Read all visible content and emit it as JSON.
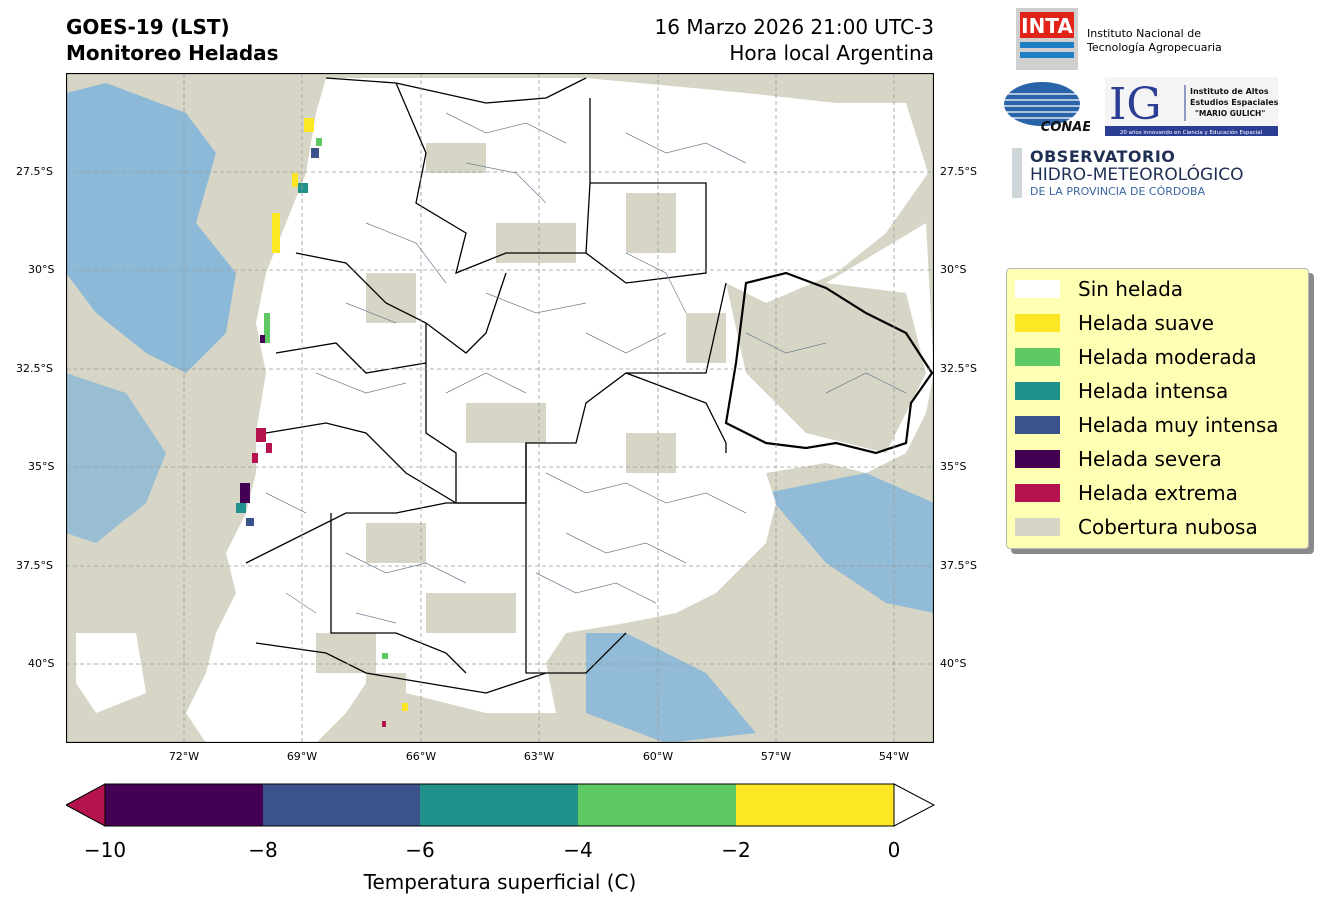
{
  "header": {
    "title_line1": "GOES-19 (LST)",
    "title_line2": "Monitoreo Heladas",
    "date_line1": "16 Marzo 2026 21:00 UTC-3",
    "date_line2": "Hora local Argentina"
  },
  "map": {
    "lat_labels": [
      "27.5°S",
      "30°S",
      "32.5°S",
      "35°S",
      "37.5°S",
      "40°S"
    ],
    "lon_labels": [
      "72°W",
      "69°W",
      "66°W",
      "63°W",
      "60°W",
      "57°W",
      "54°W"
    ],
    "colors": {
      "cloud": "#d7d6c6",
      "water": "#7fb4da",
      "land": "#ffffff",
      "border": "#000000",
      "dept": "#708090"
    }
  },
  "legend": {
    "items": [
      {
        "label": "Sin helada",
        "color": "#ffffff"
      },
      {
        "label": "Helada suave",
        "color": "#fde725"
      },
      {
        "label": "Helada moderada",
        "color": "#5ec962"
      },
      {
        "label": "Helada intensa",
        "color": "#21918c"
      },
      {
        "label": "Helada muy intensa",
        "color": "#3b528b"
      },
      {
        "label": "Helada severa",
        "color": "#440154"
      },
      {
        "label": "Helada extrema",
        "color": "#b5134f"
      },
      {
        "label": "Cobertura nubosa",
        "color": "#d7d6c6"
      }
    ]
  },
  "colorbar": {
    "ticks": [
      "−10",
      "−8",
      "−6",
      "−4",
      "−2",
      "0"
    ],
    "label": "Temperatura superficial (C)"
  },
  "logos": {
    "inta_mark": "INTA",
    "inta_line1": "Instituto Nacional de",
    "inta_line2": "Tecnología Agropecuaria",
    "conae_mark": "CONAE",
    "ig_mark": "IG",
    "ig_line1": "Instituto de Altos",
    "ig_line2": "Estudios Espaciales",
    "ig_line3": "\"MARIO GULICH\"",
    "ig_tagline": "20 años innovando en Ciencia y Educación Espacial",
    "obs_line1": "OBSERVATORIO",
    "obs_line2": "HIDRO-METEOROLÓGICO",
    "obs_line3": "DE LA PROVINCIA DE CÓRDOBA"
  }
}
